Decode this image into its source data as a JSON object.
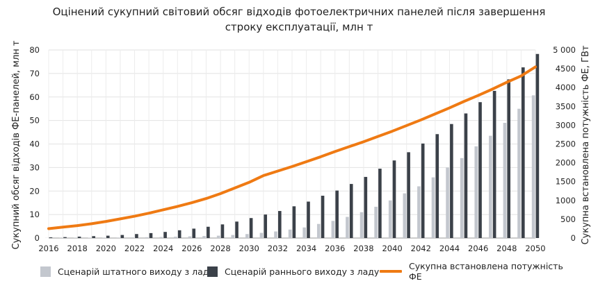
{
  "chart_data": {
    "type": "bar",
    "title_line1": "Оцінений сукупний світовий обсяг відходів фотоелектричних панелей після завершення",
    "title_line2": "строку експлуатації, млн т",
    "ylabel_left": "Сукупний обсяг відходів ФЕ-панелей, млн т",
    "ylabel_right": "Сукупна встановлена потужність ФЕ, ГВт",
    "ylim_left": [
      0,
      80
    ],
    "ylim_right": [
      0,
      5000
    ],
    "yticks_left": [
      "0",
      "10",
      "20",
      "30",
      "40",
      "50",
      "60",
      "70",
      "80"
    ],
    "yticks_right": [
      "0",
      "500",
      "1000",
      "1500",
      "2000",
      "2500",
      "3000",
      "3500",
      "4000",
      "4500",
      "5 000"
    ],
    "xticks": [
      "2016",
      "2018",
      "2020",
      "2022",
      "2024",
      "2026",
      "2028",
      "2030",
      "2032",
      "2034",
      "2036",
      "2038",
      "2040",
      "2042",
      "2044",
      "2046",
      "2048",
      "2050"
    ],
    "grid": true,
    "legend_placement": "bottom",
    "categories": [
      2016,
      2017,
      2018,
      2019,
      2020,
      2021,
      2022,
      2023,
      2024,
      2025,
      2026,
      2027,
      2028,
      2029,
      2030,
      2031,
      2032,
      2033,
      2034,
      2035,
      2036,
      2037,
      2038,
      2039,
      2040,
      2041,
      2042,
      2043,
      2044,
      2045,
      2046,
      2047,
      2048,
      2049,
      2050
    ],
    "series": [
      {
        "name": "Сценарій штатного виходу з ладу",
        "kind": "bar",
        "axis": "left",
        "color": "#c3c7ce",
        "values": [
          0.05,
          0.07,
          0.1,
          0.13,
          0.17,
          0.22,
          0.28,
          0.35,
          0.45,
          0.55,
          0.7,
          0.85,
          1.0,
          1.3,
          1.7,
          2.2,
          2.8,
          3.6,
          4.5,
          6.0,
          7.3,
          9.0,
          11.0,
          13.3,
          16.0,
          19.0,
          22.0,
          25.8,
          30.0,
          34.0,
          39.0,
          43.5,
          49.0,
          55.0,
          60.7
        ]
      },
      {
        "name": "Сценарій раннього виходу з ладу",
        "kind": "bar",
        "axis": "left",
        "color": "#3b4149",
        "values": [
          0.3,
          0.4,
          0.6,
          0.8,
          1.0,
          1.3,
          1.7,
          2.1,
          2.6,
          3.3,
          4.0,
          4.8,
          5.8,
          7.0,
          8.5,
          10.0,
          11.5,
          13.5,
          15.5,
          18.0,
          20.2,
          23.0,
          26.0,
          29.5,
          33.0,
          36.5,
          40.2,
          44.2,
          48.5,
          53.0,
          57.8,
          62.6,
          67.5,
          72.6,
          78.3
        ]
      },
      {
        "name": "Сукупна встановлена потужність ФЕ",
        "kind": "line",
        "axis": "right",
        "color": "#ef7a13",
        "values": [
          250,
          290,
          330,
          380,
          440,
          510,
          580,
          660,
          750,
          840,
          940,
          1050,
          1180,
          1330,
          1480,
          1660,
          1780,
          1900,
          2030,
          2160,
          2300,
          2430,
          2560,
          2700,
          2840,
          2990,
          3140,
          3300,
          3460,
          3630,
          3790,
          3960,
          4140,
          4310,
          4550
        ]
      }
    ]
  }
}
